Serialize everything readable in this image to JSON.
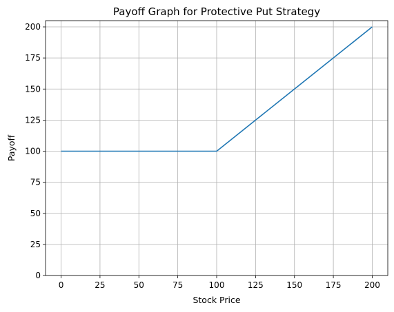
{
  "chart_data": {
    "type": "line",
    "title": "Payoff Graph for Protective Put Strategy",
    "xlabel": "Stock Price",
    "ylabel": "Payoff",
    "xlim": [
      -10,
      210
    ],
    "ylim": [
      0,
      205
    ],
    "xticks": [
      0,
      25,
      50,
      75,
      100,
      125,
      150,
      175,
      200
    ],
    "yticks": [
      0,
      25,
      50,
      75,
      100,
      125,
      150,
      175,
      200
    ],
    "grid": true,
    "series": [
      {
        "color": "#1f77b4",
        "x": [
          0,
          25,
          50,
          75,
          99,
          100,
          101,
          125,
          150,
          175,
          200
        ],
        "y": [
          100,
          100,
          100,
          100,
          100,
          100,
          101,
          125,
          150,
          175,
          200
        ]
      }
    ]
  }
}
